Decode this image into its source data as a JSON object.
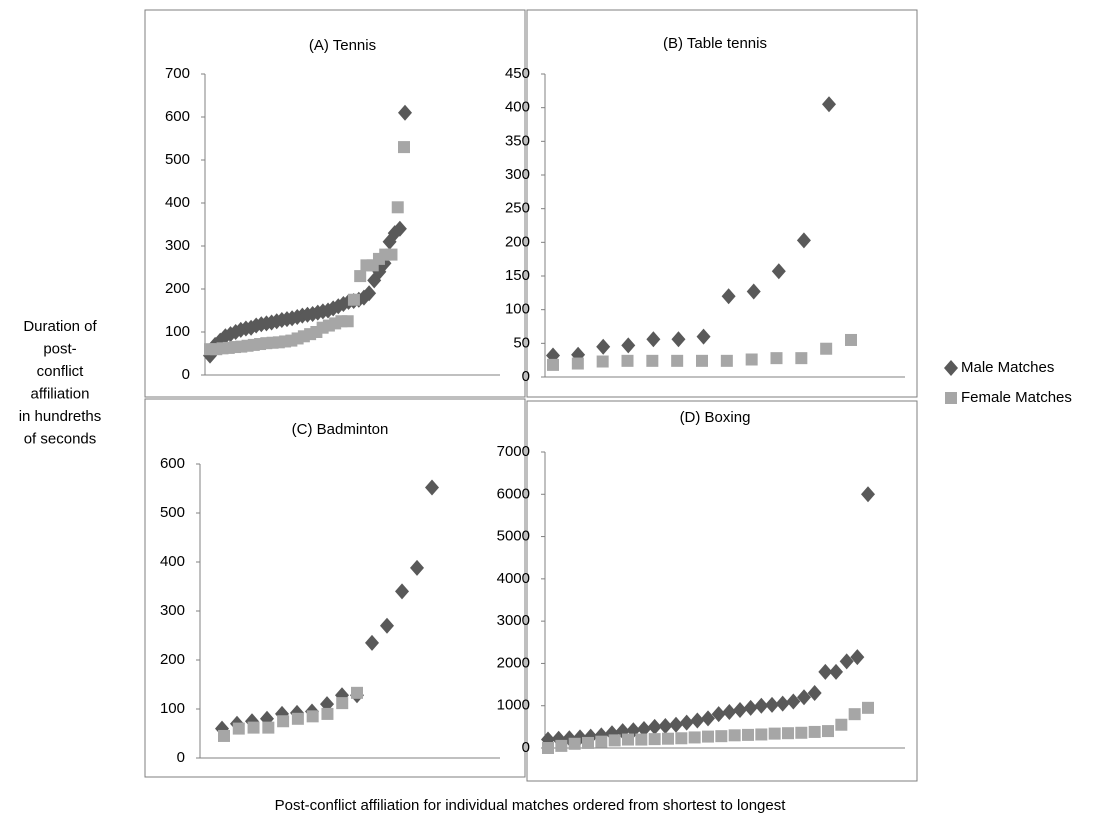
{
  "ylabel": [
    "Duration  of",
    "post-",
    "conflict",
    "affiliation",
    "in hundreths",
    "of seconds"
  ],
  "xlabel": "Post-conflict affiliation  for individual  matches ordered from shortest to longest",
  "legend": [
    {
      "name": "Male Matches",
      "color": "#595959",
      "marker": "diamond"
    },
    {
      "name": "Female Matches",
      "color": "#a6a6a6",
      "marker": "square"
    }
  ],
  "chart_data": [
    {
      "type": "scatter",
      "title": "(A) Tennis",
      "ylim": [
        0,
        700
      ],
      "yticks": [
        0,
        100,
        200,
        300,
        400,
        500,
        600,
        700
      ],
      "series": [
        {
          "values": [
            45,
            70,
            80,
            90,
            95,
            100,
            105,
            108,
            110,
            115,
            118,
            120,
            122,
            125,
            128,
            130,
            132,
            135,
            138,
            140,
            142,
            145,
            148,
            150,
            155,
            160,
            165,
            170,
            172,
            175,
            180,
            190,
            220,
            240,
            260,
            310,
            330,
            340,
            610
          ]
        },
        {
          "values": [
            60,
            60,
            62,
            63,
            65,
            66,
            68,
            70,
            72,
            74,
            75,
            76,
            78,
            80,
            85,
            90,
            95,
            100,
            110,
            115,
            120,
            125,
            125,
            175,
            230,
            255,
            255,
            270,
            280,
            280,
            390,
            530
          ]
        }
      ]
    },
    {
      "type": "scatter",
      "title": "(B) Table  tennis",
      "ylim": [
        0,
        450
      ],
      "yticks": [
        0,
        50,
        100,
        150,
        200,
        250,
        300,
        350,
        400,
        450
      ],
      "series": [
        {
          "values": [
            32,
            33,
            45,
            47,
            56,
            56,
            60,
            120,
            127,
            157,
            203,
            405
          ]
        },
        {
          "values": [
            18,
            20,
            23,
            24,
            24,
            24,
            24,
            24,
            26,
            28,
            28,
            42,
            55
          ]
        }
      ]
    },
    {
      "type": "scatter",
      "title": "(C) Badminton",
      "ylim": [
        0,
        600
      ],
      "yticks": [
        0,
        100,
        200,
        300,
        400,
        500,
        600
      ],
      "series": [
        {
          "values": [
            60,
            70,
            75,
            80,
            90,
            92,
            95,
            110,
            128,
            128,
            235,
            270,
            340,
            388,
            552
          ]
        },
        {
          "values": [
            45,
            60,
            62,
            62,
            75,
            80,
            85,
            90,
            112,
            133
          ]
        }
      ]
    },
    {
      "type": "scatter",
      "title": "(D) Boxing",
      "ylim": [
        0,
        7000
      ],
      "yticks": [
        0,
        1000,
        2000,
        3000,
        4000,
        5000,
        6000,
        7000
      ],
      "series": [
        {
          "values": [
            200,
            220,
            230,
            250,
            270,
            300,
            350,
            400,
            420,
            450,
            500,
            520,
            550,
            600,
            650,
            700,
            800,
            850,
            900,
            950,
            1000,
            1020,
            1050,
            1100,
            1200,
            1300,
            1800,
            1800,
            2050,
            2150,
            6000
          ]
        },
        {
          "values": [
            0,
            50,
            100,
            120,
            150,
            180,
            200,
            200,
            210,
            220,
            230,
            250,
            270,
            280,
            300,
            310,
            320,
            340,
            350,
            360,
            380,
            400,
            550,
            800,
            950
          ]
        }
      ]
    }
  ]
}
